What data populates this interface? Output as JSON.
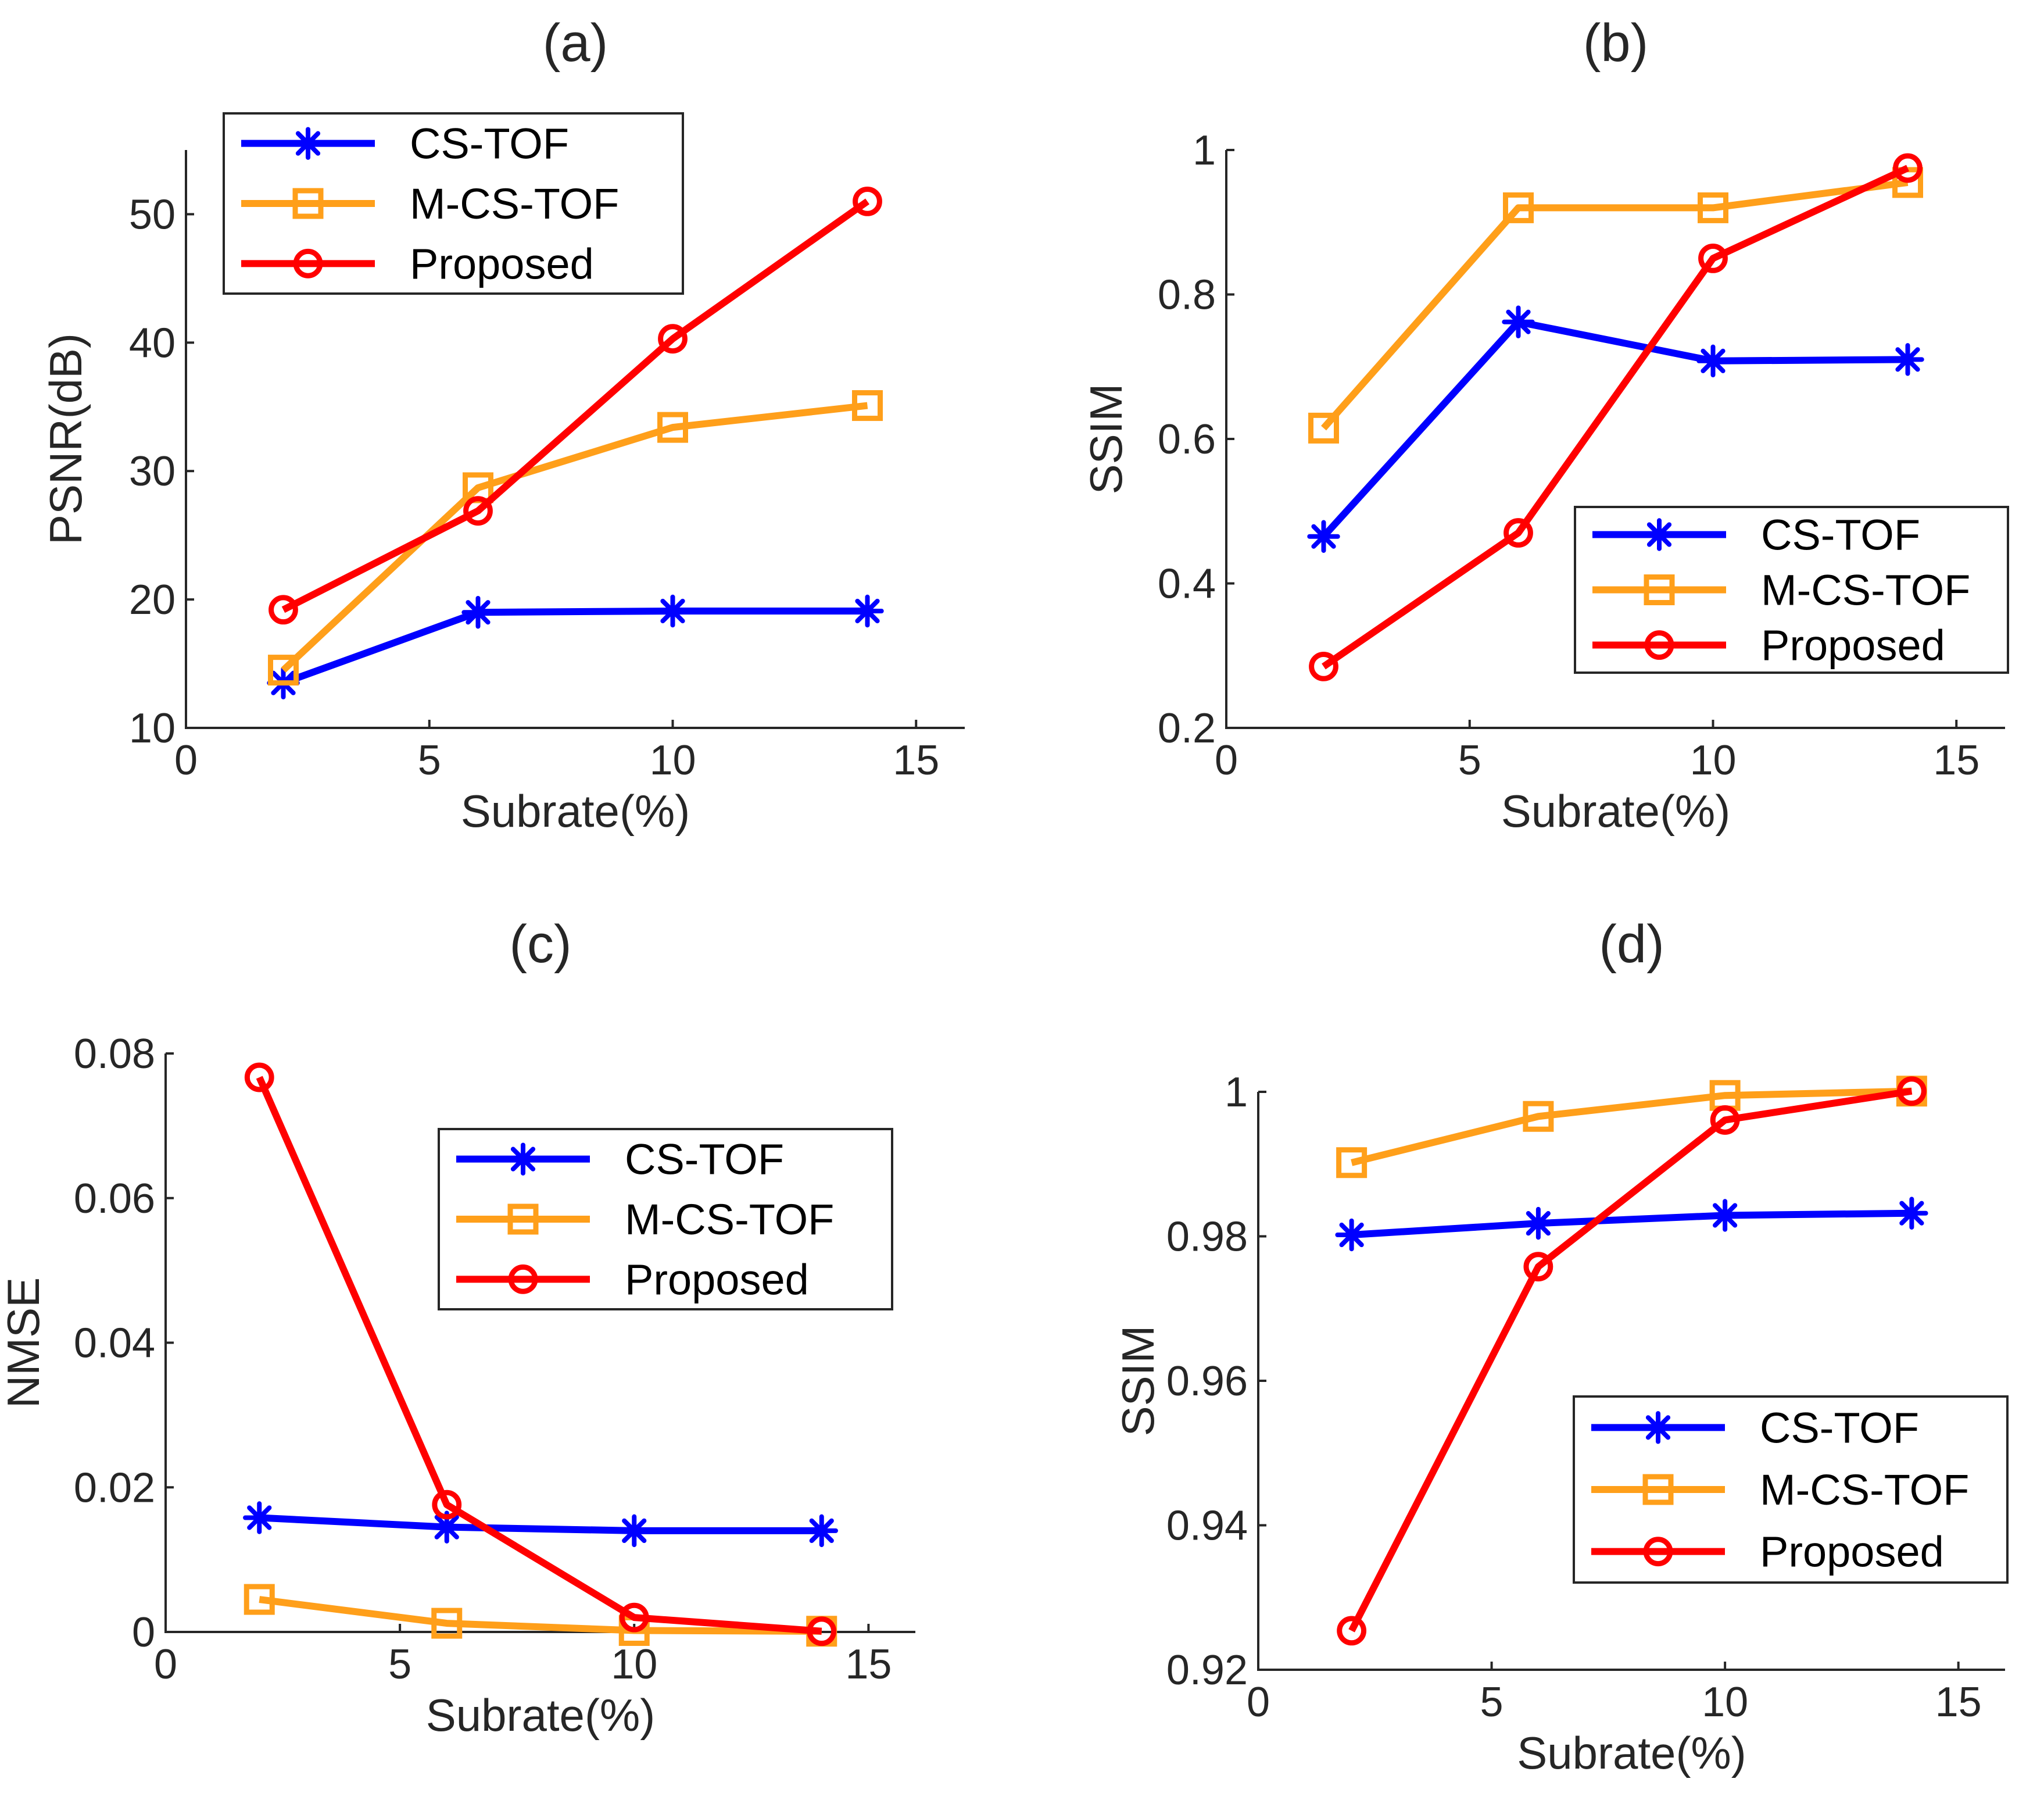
{
  "series_styles": {
    "CS-TOF": {
      "color": "#0000ff",
      "marker": "star-icon"
    },
    "M-CS-TOF": {
      "color": "#ff9f1a",
      "marker": "square-icon"
    },
    "Proposed": {
      "color": "#ff0000",
      "marker": "circle-icon"
    }
  },
  "chart_data": [
    {
      "type": "line",
      "title": "(a)",
      "xlabel": "Subrate(%)",
      "ylabel": "PSNR(dB)",
      "xlim": [
        0,
        16
      ],
      "ylim": [
        10,
        55
      ],
      "xticks": [
        0,
        5,
        10,
        15
      ],
      "yticks": [
        10,
        20,
        30,
        40,
        50
      ],
      "xtick_labels": [
        "0",
        "5",
        "10",
        "15"
      ],
      "ytick_labels": [
        "10",
        "20",
        "30",
        "40",
        "50"
      ],
      "grid": false,
      "legend_position": "top-left",
      "x": [
        2,
        6,
        10,
        14
      ],
      "series": [
        {
          "name": "CS-TOF",
          "values": [
            13.5,
            19.0,
            19.1,
            19.1
          ]
        },
        {
          "name": "M-CS-TOF",
          "values": [
            14.5,
            28.7,
            33.4,
            35.1
          ]
        },
        {
          "name": "Proposed",
          "values": [
            19.2,
            26.9,
            40.3,
            51.0
          ]
        }
      ]
    },
    {
      "type": "line",
      "title": "(b)",
      "xlabel": "Subrate(%)",
      "ylabel": "SSIM",
      "xlim": [
        0,
        16
      ],
      "ylim": [
        0.2,
        1.0
      ],
      "xticks": [
        0,
        5,
        10,
        15
      ],
      "yticks": [
        0.2,
        0.4,
        0.6,
        0.8,
        1.0
      ],
      "xtick_labels": [
        "0",
        "5",
        "10",
        "15"
      ],
      "ytick_labels": [
        "0.2",
        "0.4",
        "0.6",
        "0.8",
        "1"
      ],
      "grid": false,
      "legend_position": "bottom-right",
      "x": [
        2,
        6,
        10,
        14
      ],
      "series": [
        {
          "name": "CS-TOF",
          "values": [
            0.465,
            0.762,
            0.708,
            0.71
          ]
        },
        {
          "name": "M-CS-TOF",
          "values": [
            0.615,
            0.92,
            0.92,
            0.955
          ]
        },
        {
          "name": "Proposed",
          "values": [
            0.285,
            0.47,
            0.85,
            0.975
          ]
        }
      ]
    },
    {
      "type": "line",
      "title": "(c)",
      "xlabel": "Subrate(%)",
      "ylabel": "NMSE",
      "xlim": [
        0,
        16
      ],
      "ylim": [
        0,
        0.08
      ],
      "xticks": [
        0,
        5,
        10,
        15
      ],
      "yticks": [
        0,
        0.02,
        0.04,
        0.06,
        0.08
      ],
      "xtick_labels": [
        "0",
        "5",
        "10",
        "15"
      ],
      "ytick_labels": [
        "0",
        "0.02",
        "0.04",
        "0.06",
        "0.08"
      ],
      "grid": false,
      "legend_position": "top-right",
      "x": [
        2,
        6,
        10,
        14
      ],
      "series": [
        {
          "name": "CS-TOF",
          "values": [
            0.0158,
            0.0145,
            0.014,
            0.014
          ]
        },
        {
          "name": "M-CS-TOF",
          "values": [
            0.0045,
            0.0012,
            0.0002,
            0.0001
          ]
        },
        {
          "name": "Proposed",
          "values": [
            0.0767,
            0.0176,
            0.002,
            0.0001
          ]
        }
      ]
    },
    {
      "type": "line",
      "title": "(d)",
      "xlabel": "Subrate(%)",
      "ylabel": "SSIM",
      "xlim": [
        0,
        16
      ],
      "ylim": [
        0.92,
        1.0
      ],
      "xticks": [
        0,
        5,
        10,
        15
      ],
      "yticks": [
        0.92,
        0.94,
        0.96,
        0.98,
        1.0
      ],
      "xtick_labels": [
        "0",
        "5",
        "10",
        "15"
      ],
      "ytick_labels": [
        "0.92",
        "0.94",
        "0.96",
        "0.98",
        "1"
      ],
      "grid": false,
      "legend_position": "bottom-right",
      "x": [
        2,
        6,
        10,
        14
      ],
      "series": [
        {
          "name": "CS-TOF",
          "values": [
            0.9802,
            0.9818,
            0.9829,
            0.9832
          ]
        },
        {
          "name": "M-CS-TOF",
          "values": [
            0.9902,
            0.9966,
            0.9995,
            1.0001
          ]
        },
        {
          "name": "Proposed",
          "values": [
            0.9254,
            0.9758,
            0.9961,
            1.0001
          ]
        }
      ]
    }
  ]
}
